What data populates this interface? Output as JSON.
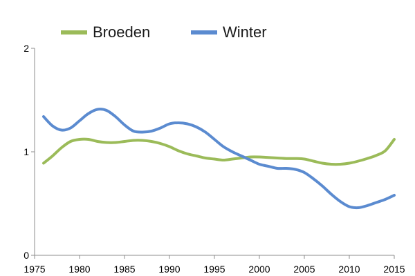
{
  "chart_data": {
    "type": "line",
    "x": [
      1976,
      1977,
      1978,
      1979,
      1980,
      1981,
      1982,
      1983,
      1984,
      1985,
      1986,
      1987,
      1988,
      1989,
      1990,
      1991,
      1992,
      1993,
      1994,
      1995,
      1996,
      1997,
      1998,
      1999,
      2000,
      2001,
      2002,
      2003,
      2004,
      2005,
      2006,
      2007,
      2008,
      2009,
      2010,
      2011,
      2012,
      2013,
      2014,
      2015
    ],
    "series": [
      {
        "name": "Broeden",
        "color": "#9bbb59",
        "values": [
          0.89,
          0.96,
          1.04,
          1.1,
          1.12,
          1.12,
          1.1,
          1.09,
          1.09,
          1.1,
          1.11,
          1.11,
          1.1,
          1.08,
          1.05,
          1.01,
          0.98,
          0.96,
          0.94,
          0.93,
          0.92,
          0.93,
          0.94,
          0.95,
          0.95,
          0.945,
          0.94,
          0.935,
          0.935,
          0.93,
          0.91,
          0.89,
          0.88,
          0.88,
          0.89,
          0.91,
          0.935,
          0.965,
          1.01,
          1.12
        ]
      },
      {
        "name": "Winter",
        "color": "#5b8bd0",
        "values": [
          1.34,
          1.25,
          1.21,
          1.23,
          1.3,
          1.37,
          1.41,
          1.4,
          1.34,
          1.26,
          1.2,
          1.19,
          1.2,
          1.23,
          1.27,
          1.28,
          1.27,
          1.24,
          1.19,
          1.12,
          1.05,
          1.0,
          0.96,
          0.92,
          0.88,
          0.86,
          0.84,
          0.84,
          0.83,
          0.8,
          0.74,
          0.67,
          0.59,
          0.52,
          0.47,
          0.46,
          0.48,
          0.51,
          0.54,
          0.58
        ]
      }
    ],
    "yticks": [
      "0",
      "1",
      "2"
    ],
    "xticks": [
      "1975",
      "1980",
      "1985",
      "1990",
      "1995",
      "2000",
      "2005",
      "2010",
      "2015"
    ],
    "ylim": [
      0,
      2
    ],
    "xlim": [
      1975,
      2015
    ],
    "grid": false,
    "legend_position": "top-left"
  }
}
